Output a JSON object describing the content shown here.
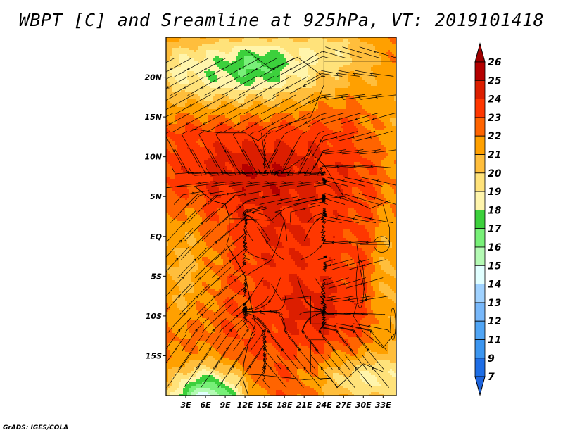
{
  "title": "WBPT [C] and Sreamline at 925hPa, VT: 2019101418",
  "credit": "GrADS: IGES/COLA",
  "map": {
    "lon_range": [
      0,
      35
    ],
    "lat_range": [
      -20,
      25
    ],
    "lat_labels": [
      {
        "v": 20,
        "t": "20N"
      },
      {
        "v": 15,
        "t": "15N"
      },
      {
        "v": 10,
        "t": "10N"
      },
      {
        "v": 5,
        "t": "5N"
      },
      {
        "v": 0,
        "t": "EQ"
      },
      {
        "v": -5,
        "t": "5S"
      },
      {
        "v": -10,
        "t": "10S"
      },
      {
        "v": -15,
        "t": "15S"
      }
    ],
    "lon_labels": [
      {
        "v": 3,
        "t": "3E"
      },
      {
        "v": 6,
        "t": "6E"
      },
      {
        "v": 9,
        "t": "9E"
      },
      {
        "v": 12,
        "t": "12E"
      },
      {
        "v": 15,
        "t": "15E"
      },
      {
        "v": 18,
        "t": "18E"
      },
      {
        "v": 21,
        "t": "21E"
      },
      {
        "v": 24,
        "t": "24E"
      },
      {
        "v": 27,
        "t": "27E"
      },
      {
        "v": 30,
        "t": "30E"
      },
      {
        "v": 33,
        "t": "33E"
      }
    ]
  },
  "colorbar": {
    "labels": [
      "26",
      "25",
      "24",
      "23",
      "22",
      "21",
      "20",
      "19",
      "18",
      "17",
      "16",
      "15",
      "14",
      "13",
      "12",
      "11",
      "9",
      "7"
    ],
    "colors": [
      "#b40000",
      "#dc1e00",
      "#ff3700",
      "#ff6400",
      "#ffa000",
      "#ffbe3c",
      "#ffe27a",
      "#fff5ac",
      "#3cd03c",
      "#78f078",
      "#b4fab4",
      "#e1ffff",
      "#a0d2ff",
      "#78b8fa",
      "#50a5f5",
      "#3c96f0",
      "#1e6ee6"
    ],
    "top_arrow_color": "#a00000",
    "bottom_arrow_color": "#1e64dc"
  }
}
